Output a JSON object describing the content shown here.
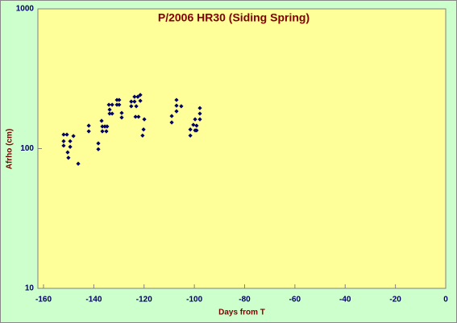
{
  "chart_data": {
    "type": "scatter",
    "title": "P/2006 HR30 (Siding Spring)",
    "x_label": "Days from T",
    "y_label": "Afrho (cm)",
    "log_y": true,
    "grid": false,
    "color": "#000066",
    "x": [
      -152.0,
      -150.7,
      -152.0,
      -149.4,
      -152.0,
      -149.4,
      -150.4,
      -150.1,
      -148.1,
      -146.2,
      -142.0,
      -142.0,
      -138.2,
      -138.2,
      -136.9,
      -136.6,
      -135.6,
      -136.6,
      -135.0,
      -134.7,
      -133.7,
      -132.7,
      -134.0,
      -133.7,
      -132.7,
      -130.8,
      -129.9,
      -130.8,
      -129.9,
      -128.9,
      -128.9,
      -125.1,
      -123.8,
      -125.1,
      -123.1,
      -122.5,
      -123.8,
      -123.4,
      -122.2,
      -121.5,
      -121.5,
      -120.2,
      -120.6,
      -119.9,
      -109.0,
      -109.0,
      -107.1,
      -107.1,
      -107.1,
      -105.2,
      -101.6,
      -101.6,
      -100.4,
      -99.7,
      -99.7,
      -97.8,
      -97.8,
      -97.8,
      -99.1,
      -99.1
    ],
    "values": [
      126,
      126,
      113,
      113,
      105,
      103,
      94,
      86,
      123,
      78,
      146,
      133,
      109,
      99,
      158,
      144,
      144,
      133,
      133,
      144,
      190,
      206,
      206,
      178,
      178,
      223,
      223,
      206,
      206,
      180,
      167,
      217,
      217,
      201,
      201,
      235,
      235,
      169,
      169,
      242,
      220,
      137,
      124,
      162,
      171,
      154,
      223,
      203,
      185,
      201,
      137,
      124,
      148,
      162,
      135,
      195,
      178,
      162,
      135,
      146
    ],
    "xlim": [
      -160,
      0
    ],
    "xticks": [
      -160,
      -140,
      -120,
      -100,
      -80,
      -60,
      -40,
      -20,
      0
    ],
    "ylim": [
      10,
      1000
    ],
    "yticks": [
      10,
      100,
      1000
    ]
  }
}
